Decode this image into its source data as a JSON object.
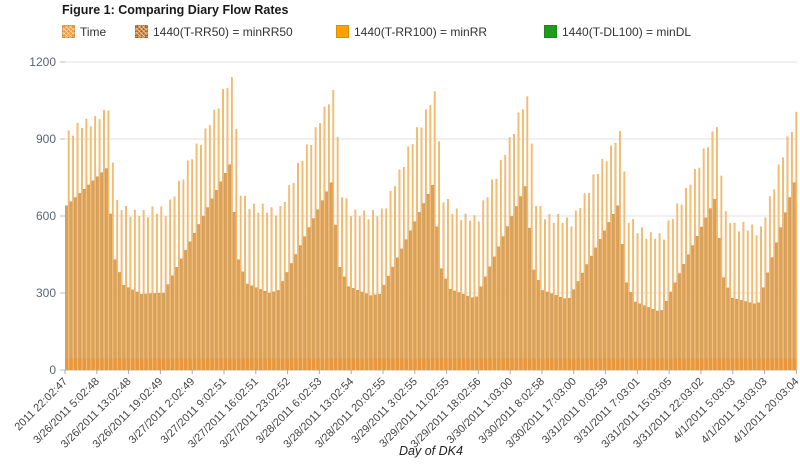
{
  "title": "Figure 1: Comparing Diary Flow Rates",
  "legend": {
    "items": [
      {
        "label": "Time",
        "color": "#E8973F",
        "textured": true
      },
      {
        "label": "1440(T-RR50) = minRR50",
        "color": "#B4641E",
        "textured": true
      },
      {
        "label": "1440(T-RR100) = minRR",
        "color": "#FFA200",
        "textured": false
      },
      {
        "label": "1440(T-DL100) = minDL",
        "color": "#229A22",
        "textured": false
      }
    ]
  },
  "chart_data": {
    "type": "bar",
    "title": "Figure 1: Comparing Diary Flow Rates",
    "x_axis_title": "Day of DK4",
    "ylim": [
      0,
      1200
    ],
    "y_ticks": [
      0,
      300,
      600,
      900,
      1200
    ],
    "grid": true,
    "legend_position": "top",
    "n_points": 166,
    "x_tick_labels": [
      "2011 22:02:47",
      "3/26/2011 5:02:48",
      "3/26/2011 13:02:48",
      "3/26/2011 19:02:49",
      "3/27/2011 2:02:49",
      "3/27/2011 9:02:51",
      "3/27/2011 16:02:51",
      "3/27/2011 23:02:52",
      "3/28/2011 6:02:53",
      "3/28/2011 13:02:54",
      "3/28/2011 20:02:55",
      "3/29/2011 3:02:55",
      "3/29/2011 11:02:55",
      "3/29/2011 18:02:56",
      "3/30/2011 1:03:00",
      "3/30/2011 8:02:58",
      "3/30/2011 17:03:00",
      "3/31/2011 0:02:59",
      "3/31/2011 7:03:01",
      "3/31/2011 15:03:05",
      "3/31/2011 22:03:02",
      "4/1/2011 5:03:03",
      "4/1/2011 13:03:03",
      "4/1/2011 20:03:04"
    ],
    "series": [
      {
        "name": "Time",
        "render": "bottom-strip",
        "color": "#E8973F",
        "constant_value": 45
      },
      {
        "name": "1440(T-RR50) = minRR50",
        "render": "bar",
        "color": "#D7A262",
        "edge": "#C28E4B",
        "values": [
          640,
          656,
          672,
          688,
          704,
          721,
          737,
          753,
          769,
          785,
          608,
          430,
          380,
          330,
          321,
          312,
          304,
          295,
          296,
          297,
          298,
          299,
          300,
          333,
          367,
          400,
          433,
          467,
          500,
          533,
          567,
          600,
          633,
          667,
          700,
          733,
          767,
          800,
          615,
          430,
          383,
          335,
          328,
          321,
          314,
          307,
          300,
          305,
          310,
          345,
          380,
          415,
          450,
          485,
          520,
          555,
          590,
          625,
          660,
          695,
          730,
          565,
          400,
          363,
          325,
          318,
          311,
          304,
          297,
          290,
          293,
          295,
          330,
          366,
          401,
          437,
          472,
          508,
          543,
          578,
          614,
          649,
          685,
          720,
          558,
          395,
          355,
          315,
          308,
          302,
          295,
          288,
          282,
          285,
          324,
          363,
          402,
          441,
          480,
          520,
          559,
          598,
          637,
          676,
          715,
          553,
          390,
          350,
          310,
          304,
          297,
          291,
          284,
          278,
          280,
          313,
          345,
          378,
          411,
          444,
          476,
          509,
          542,
          575,
          607,
          640,
          490,
          340,
          303,
          265,
          258,
          251,
          244,
          237,
          230,
          232,
          268,
          304,
          340,
          376,
          412,
          449,
          485,
          521,
          557,
          593,
          629,
          665,
          513,
          360,
          320,
          280,
          276,
          271,
          267,
          262,
          258,
          262,
          321,
          379,
          438,
          496,
          555,
          613,
          672,
          730
        ]
      },
      {
        "name": "1440(T-RR100) = minRR",
        "render": "bar",
        "color": "#F5C07A",
        "edge": "#ECA94F",
        "values": [
          932,
          912,
          962,
          942,
          978,
          948,
          988,
          976,
          1012,
          1010,
          807,
          662,
          622,
          638,
          596,
          623,
          599,
          622,
          594,
          636,
          608,
          636,
          598,
          663,
          675,
          736,
          741,
          815,
          820,
          881,
          875,
          940,
          953,
          1013,
          1018,
          1093,
          1097,
          1140,
          938,
          678,
          678,
          626,
          647,
          612,
          647,
          612,
          633,
          601,
          638,
          654,
          719,
          727,
          805,
          814,
          878,
          876,
          945,
          961,
          1025,
          1034,
          1090,
          907,
          672,
          668,
          598,
          624,
          598,
          620,
          586,
          622,
          597,
          628,
          628,
          697,
          715,
          780,
          790,
          870,
          879,
          945,
          944,
          1014,
          1031,
          1085,
          890,
          652,
          665,
          607,
          628,
          583,
          608,
          581,
          602,
          577,
          660,
          672,
          741,
          744,
          817,
          837,
          906,
          919,
          1002,
          1014,
          1065,
          881,
          638,
          638,
          586,
          607,
          572,
          607,
          572,
          593,
          558,
          620,
          630,
          687,
          689,
          761,
          763,
          821,
          812,
          874,
          884,
          930,
          772,
          572,
          587,
          532,
          554,
          510,
          536,
          510,
          532,
          507,
          582,
          587,
          648,
          643,
          708,
          721,
          782,
          787,
          862,
          867,
          928,
          945,
          756,
          618,
          571,
          572,
          539,
          576,
          543,
          566,
          523,
          558,
          593,
          676,
          703,
          800,
          827,
          909,
          926,
          1005
        ]
      },
      {
        "name": "1440(T-DL100) = minDL",
        "render": "none",
        "color": "#229A22",
        "values": []
      }
    ]
  }
}
